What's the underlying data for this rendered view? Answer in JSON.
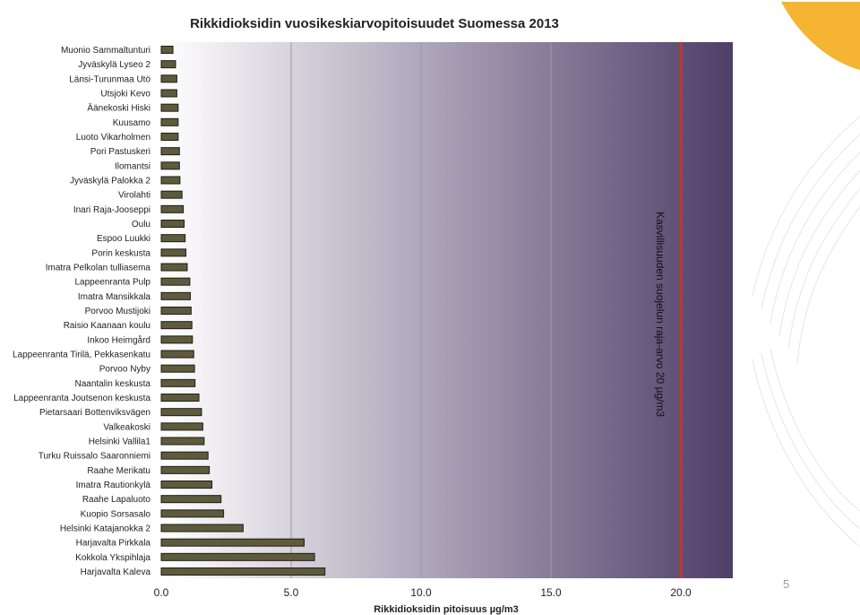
{
  "page_number": "5",
  "colors": {
    "bar_fill": "#5e5a3e",
    "bar_stroke": "#1f1d12",
    "limit_line": "#c0392b",
    "plot_bg_start": "#ffffff",
    "plot_bg_end": "#4f3e69",
    "logo_fill": "#f5b431"
  },
  "chart_data": {
    "type": "bar",
    "orientation": "horizontal",
    "title": "Rikkidioksidin vuosikeskiarvopitoisuudet Suomessa 2013",
    "xlabel": "Rikkidioksidin pitoisuus µg/m3",
    "ylabel": "",
    "xlim": [
      0,
      22
    ],
    "xticks": [
      "0.0",
      "5.0",
      "10.0",
      "15.0",
      "20.0"
    ],
    "xtick_values": [
      0,
      5,
      10,
      15,
      20
    ],
    "grid": "vertical",
    "categories": [
      "Muonio Sammaltunturi",
      "Jyväskylä Lyseo 2",
      "Länsi-Turunmaa Utö",
      "Utsjoki Kevo",
      "Äänekoski Hiski",
      "Kuusamo",
      "Luoto Vikarholmen",
      "Pori Pastuskeri",
      "Ilomantsi",
      "Jyväskylä Palokka 2",
      "Virolahti",
      "Inari Raja-Jooseppi",
      "Oulu",
      "Espoo Luukki",
      "Porin keskusta",
      "Imatra Pelkolan tulliasema",
      "Lappeenranta Pulp",
      "Imatra Mansikkala",
      "Porvoo Mustijoki",
      "Raisio Kaanaan koulu",
      "Inkoo Heimgård",
      "Lappeenranta Tirilä, Pekkasenkatu",
      "Porvoo Nyby",
      "Naantalin keskusta",
      "Lappeenranta Joutsenon keskusta",
      "Pietarsaari Bottenviksvägen",
      "Valkeakoski",
      "Helsinki Vallila1",
      "Turku Ruissalo Saaronniemi",
      "Raahe Merikatu",
      "Imatra Rautionkylä",
      "Raahe Lapaluoto",
      "Kuopio Sorsasalo",
      "Helsinki Katajanokka 2",
      "Harjavalta Pirkkala",
      "Kokkola Ykspihlaja",
      "Harjavalta Kaleva"
    ],
    "values": [
      0.45,
      0.55,
      0.6,
      0.6,
      0.65,
      0.65,
      0.65,
      0.7,
      0.7,
      0.72,
      0.8,
      0.85,
      0.88,
      0.92,
      0.95,
      1.0,
      1.1,
      1.12,
      1.15,
      1.18,
      1.2,
      1.25,
      1.28,
      1.3,
      1.45,
      1.55,
      1.6,
      1.65,
      1.8,
      1.85,
      1.95,
      2.3,
      2.4,
      3.15,
      5.5,
      5.9,
      6.3
    ],
    "reference_line": {
      "x": 20,
      "label": "Kasvillisuuden suojelun raja-arvo 20 µg/m3"
    }
  }
}
